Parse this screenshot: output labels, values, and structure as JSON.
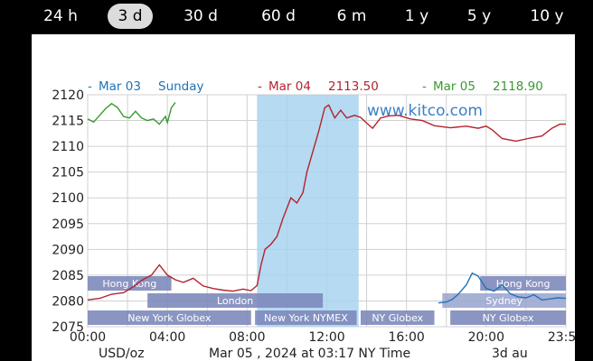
{
  "tabs": [
    {
      "label": "24 h",
      "active": false
    },
    {
      "label": "3 d",
      "active": true
    },
    {
      "label": "30 d",
      "active": false
    },
    {
      "label": "60 d",
      "active": false
    },
    {
      "label": "6 m",
      "active": false
    },
    {
      "label": "1 y",
      "active": false
    },
    {
      "label": "5 y",
      "active": false
    },
    {
      "label": "10 y",
      "active": false
    }
  ],
  "chart_data": {
    "type": "line",
    "watermark": "www.kitco.com",
    "ylim": [
      2075,
      2120
    ],
    "yticks": [
      "2120",
      "2115",
      "2110",
      "2105",
      "2100",
      "2095",
      "2090",
      "2085",
      "2080",
      "2075"
    ],
    "xticks": [
      "00:00",
      "04:00",
      "08:00",
      "12:00",
      "16:00",
      "20:00",
      "23:59"
    ],
    "xlim_hours": [
      0,
      24
    ],
    "bottom_left": "USD/oz",
    "bottom_center": "Mar 05 , 2024 at 03:17 NY Time",
    "bottom_right": "3d au",
    "highlight_hours": [
      8.5,
      13.6
    ],
    "legend": [
      {
        "marker": "-",
        "date": "Mar 03",
        "value": "Sunday",
        "color": "#1f73b7"
      },
      {
        "marker": "-",
        "date": "Mar 04",
        "value": "2113.50",
        "color": "#b4232f"
      },
      {
        "marker": "-",
        "date": "Mar 05",
        "value": "2118.90",
        "color": "#3a9a2f"
      }
    ],
    "series": [
      {
        "name": "Mar 04",
        "color": "#b4232f",
        "points": [
          [
            0,
            2080.2
          ],
          [
            0.6,
            2080.5
          ],
          [
            1.2,
            2081.3
          ],
          [
            1.8,
            2081.6
          ],
          [
            2.3,
            2082.8
          ],
          [
            2.8,
            2084.2
          ],
          [
            3.2,
            2085
          ],
          [
            3.6,
            2087
          ],
          [
            4.0,
            2085
          ],
          [
            4.4,
            2084.1
          ],
          [
            4.8,
            2083.6
          ],
          [
            5.3,
            2084.4
          ],
          [
            5.8,
            2082.9
          ],
          [
            6.3,
            2082.4
          ],
          [
            6.8,
            2082.1
          ],
          [
            7.3,
            2081.9
          ],
          [
            7.8,
            2082.3
          ],
          [
            8.2,
            2082
          ],
          [
            8.5,
            2083
          ],
          [
            8.7,
            2087
          ],
          [
            8.9,
            2090
          ],
          [
            9.2,
            2091
          ],
          [
            9.5,
            2092.5
          ],
          [
            9.8,
            2096
          ],
          [
            10.2,
            2100
          ],
          [
            10.5,
            2099
          ],
          [
            10.8,
            2101
          ],
          [
            11.0,
            2105
          ],
          [
            11.3,
            2109
          ],
          [
            11.6,
            2113
          ],
          [
            11.9,
            2117.5
          ],
          [
            12.1,
            2118
          ],
          [
            12.4,
            2115.5
          ],
          [
            12.7,
            2117
          ],
          [
            13.0,
            2115.5
          ],
          [
            13.4,
            2116
          ],
          [
            13.7,
            2115.6
          ],
          [
            14.0,
            2114.5
          ],
          [
            14.3,
            2113.5
          ],
          [
            14.7,
            2115.5
          ],
          [
            15.1,
            2115.9
          ],
          [
            15.6,
            2116
          ],
          [
            16.2,
            2115.3
          ],
          [
            16.8,
            2115
          ],
          [
            17.4,
            2114
          ],
          [
            18.2,
            2113.6
          ],
          [
            19.0,
            2113.9
          ],
          [
            19.6,
            2113.5
          ],
          [
            20.0,
            2113.9
          ],
          [
            20.3,
            2113.2
          ],
          [
            20.8,
            2111.5
          ],
          [
            21.5,
            2111
          ],
          [
            22.2,
            2111.6
          ],
          [
            22.8,
            2112
          ],
          [
            23.3,
            2113.5
          ],
          [
            23.7,
            2114.3
          ],
          [
            24.0,
            2114.3
          ]
        ]
      },
      {
        "name": "Mar 05",
        "color": "#3a9a2f",
        "points": [
          [
            0,
            2115.3
          ],
          [
            0.3,
            2114.7
          ],
          [
            0.6,
            2116
          ],
          [
            0.9,
            2117.3
          ],
          [
            1.2,
            2118.3
          ],
          [
            1.5,
            2117.5
          ],
          [
            1.8,
            2115.8
          ],
          [
            2.1,
            2115.5
          ],
          [
            2.4,
            2116.8
          ],
          [
            2.7,
            2115.5
          ],
          [
            3.0,
            2115
          ],
          [
            3.3,
            2115.3
          ],
          [
            3.6,
            2114.3
          ],
          [
            3.9,
            2115.8
          ],
          [
            4.0,
            2114.6
          ],
          [
            4.2,
            2117.5
          ],
          [
            4.4,
            2118.5
          ]
        ]
      },
      {
        "name": "Mar 03",
        "color": "#1f73b7",
        "points": [
          [
            17.6,
            2079.6
          ],
          [
            18.0,
            2079.8
          ],
          [
            18.3,
            2080.3
          ],
          [
            18.6,
            2081.3
          ],
          [
            19.0,
            2083.1
          ],
          [
            19.3,
            2085.4
          ],
          [
            19.6,
            2084.8
          ],
          [
            20.0,
            2082.4
          ],
          [
            20.4,
            2081.9
          ],
          [
            20.8,
            2083.1
          ],
          [
            21.2,
            2081.4
          ],
          [
            21.6,
            2080.8
          ],
          [
            22.0,
            2080.6
          ],
          [
            22.4,
            2081.2
          ],
          [
            22.8,
            2080.2
          ],
          [
            23.2,
            2080.4
          ],
          [
            23.6,
            2080.6
          ],
          [
            24.0,
            2080.5
          ]
        ]
      }
    ],
    "sessions": [
      {
        "label": "Hong Kong",
        "row": 0,
        "start_h": 0.0,
        "end_h": 4.2,
        "color": "#7b86b9"
      },
      {
        "label": "Hong Kong",
        "row": 0,
        "start_h": 19.7,
        "end_h": 24.0,
        "color": "#7b86b9"
      },
      {
        "label": "London",
        "row": 1,
        "start_h": 3.0,
        "end_h": 11.8,
        "color": "#7b86b9"
      },
      {
        "label": "Sydney",
        "row": 1,
        "start_h": 17.8,
        "end_h": 24.0,
        "color": "#9ba5cf"
      },
      {
        "label": "New York Globex",
        "row": 2,
        "start_h": 0.0,
        "end_h": 8.2,
        "color": "#7b86b9"
      },
      {
        "label": "New York NYMEX",
        "row": 2,
        "start_h": 8.4,
        "end_h": 13.5,
        "color": "#7b86b9"
      },
      {
        "label": "NY Globex",
        "row": 2,
        "start_h": 13.7,
        "end_h": 17.4,
        "color": "#7b86b9"
      },
      {
        "label": "NY Globex",
        "row": 2,
        "start_h": 18.2,
        "end_h": 24.0,
        "color": "#7b86b9"
      }
    ]
  }
}
